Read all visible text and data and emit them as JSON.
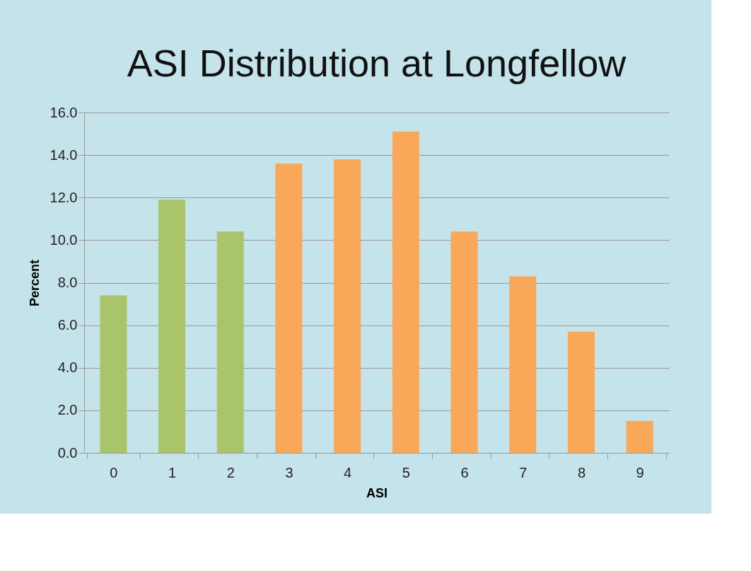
{
  "chart_data": {
    "type": "bar",
    "title": "ASI Distribution at Longfellow",
    "xlabel": "ASI",
    "ylabel": "Percent",
    "categories": [
      "0",
      "1",
      "2",
      "3",
      "4",
      "5",
      "6",
      "7",
      "8",
      "9"
    ],
    "values": [
      7.4,
      11.9,
      10.4,
      13.6,
      13.8,
      15.1,
      10.4,
      8.3,
      5.7,
      1.5
    ],
    "colors": [
      "#a9c46a",
      "#a9c46a",
      "#a9c46a",
      "#f8a858",
      "#f8a858",
      "#f8a858",
      "#f8a858",
      "#f8a858",
      "#f8a858",
      "#f8a858"
    ],
    "ylim": [
      0,
      16
    ],
    "yticks": [
      {
        "value": 0,
        "label": "0.0"
      },
      {
        "value": 2,
        "label": "2.0"
      },
      {
        "value": 4,
        "label": "4.0"
      },
      {
        "value": 6,
        "label": "6.0"
      },
      {
        "value": 8,
        "label": "8.0"
      },
      {
        "value": 10,
        "label": "10.0"
      },
      {
        "value": 12,
        "label": "12.0"
      },
      {
        "value": 14,
        "label": "14.0"
      },
      {
        "value": 16,
        "label": "16.0"
      }
    ],
    "grid": "y",
    "legend": false
  }
}
